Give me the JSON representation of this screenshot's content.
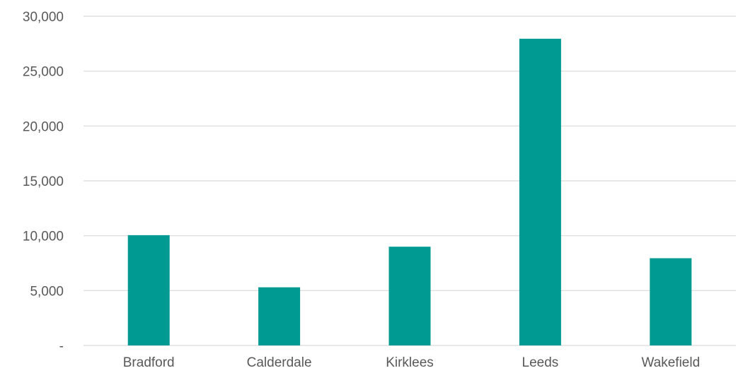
{
  "chart_data": {
    "type": "bar",
    "categories": [
      "Bradford",
      "Calderdale",
      "Kirklees",
      "Leeds",
      "Wakefield"
    ],
    "values": [
      10050,
      5300,
      9000,
      27950,
      7950
    ],
    "ylim": [
      0,
      30000
    ],
    "yticks": [
      0,
      5000,
      10000,
      15000,
      20000,
      25000,
      30000
    ],
    "ytick_labels": [
      "-",
      "5,000",
      "10,000",
      "15,000",
      "20,000",
      "25,000",
      "30,000"
    ],
    "title": "",
    "xlabel": "",
    "ylabel": "",
    "grid": true,
    "legend": "none",
    "bar_color": "#009a93"
  }
}
